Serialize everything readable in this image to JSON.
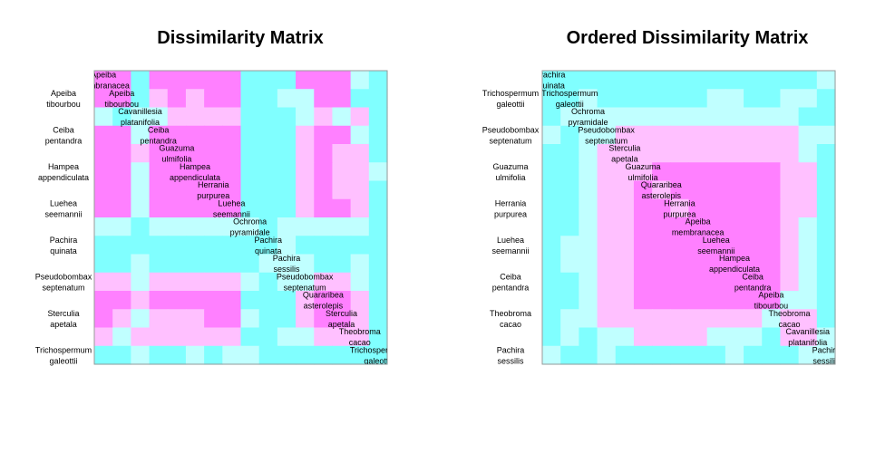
{
  "palette": {
    "cyan": "#80FFFF",
    "light_cyan": "#C0FFFF",
    "light_pink": "#FFC0FF",
    "magenta": "#FF80FF",
    "border": "#999999"
  },
  "chart_data": [
    {
      "type": "heatmap",
      "title": "Dissimilarity Matrix",
      "levels": [
        "cyan",
        "light_cyan",
        "light_pink",
        "magenta"
      ],
      "labels": [
        "Apeiba membranacea",
        "Apeiba tibourbou",
        "Cavanillesia platanifolia",
        "Ceiba pentandra",
        "Guazuma ulmifolia",
        "Hampea appendiculata",
        "Herrania purpurea",
        "Luehea seemannii",
        "Ochroma pyramidale",
        "Pachira quinata",
        "Pachira sessilis",
        "Pseudobombax septenatum",
        "Quararibea asterolepis",
        "Sterculia apetala",
        "Theobroma cacao",
        "Trichospermum galeottii"
      ],
      "diag_labels": [
        [
          "Apeiba",
          "membranacea"
        ],
        [
          "Apeiba",
          "tibourbou"
        ],
        [
          "Cavanillesia",
          "platanifolia"
        ],
        [
          "Ceiba",
          "pentandra"
        ],
        [
          "Guazuma",
          "ulmifolia"
        ],
        [
          "Hampea",
          "appendiculata"
        ],
        [
          "Herrania",
          "purpurea"
        ],
        [
          "Luehea",
          "seemannii"
        ],
        [
          "Ochroma",
          "pyramidale"
        ],
        [
          "Pachira",
          "quinata"
        ],
        [
          "Pachira",
          "sessilis"
        ],
        [
          "Pseudobombax",
          "septenatum"
        ],
        [
          "Quararibea",
          "asterolepis"
        ],
        [
          "Sterculia",
          "apetala"
        ],
        [
          "Theobroma",
          "cacao"
        ],
        [
          "Trichospermum",
          "galeottii"
        ]
      ],
      "row_labels": [
        [
          "Apeiba",
          "tibourbou"
        ],
        [
          "Ceiba",
          "pentandra"
        ],
        [
          "Hampea",
          "appendiculata"
        ],
        [
          "Luehea",
          "seemannii"
        ],
        [
          "Pachira",
          "quinata"
        ],
        [
          "Pseudobombax",
          "septenatum"
        ],
        [
          "Sterculia",
          "apetala"
        ],
        [
          "Trichospermum",
          "galeottii"
        ]
      ],
      "matrix": [
        [
          3,
          3,
          0,
          3,
          3,
          3,
          3,
          3,
          0,
          0,
          0,
          3,
          3,
          3,
          1,
          0
        ],
        [
          3,
          3,
          0,
          2,
          3,
          2,
          3,
          3,
          0,
          0,
          1,
          1,
          3,
          3,
          0,
          0
        ],
        [
          1,
          0,
          1,
          1,
          2,
          2,
          2,
          2,
          0,
          0,
          0,
          1,
          2,
          1,
          2,
          0
        ],
        [
          3,
          3,
          1,
          3,
          3,
          3,
          3,
          3,
          0,
          0,
          0,
          2,
          3,
          3,
          1,
          0
        ],
        [
          3,
          3,
          2,
          3,
          3,
          3,
          3,
          3,
          0,
          0,
          0,
          2,
          3,
          2,
          2,
          0
        ],
        [
          3,
          3,
          1,
          3,
          3,
          3,
          3,
          3,
          0,
          0,
          0,
          2,
          3,
          2,
          2,
          1
        ],
        [
          3,
          3,
          1,
          3,
          3,
          3,
          3,
          3,
          0,
          0,
          0,
          2,
          3,
          2,
          2,
          0
        ],
        [
          3,
          3,
          1,
          3,
          3,
          3,
          3,
          3,
          0,
          0,
          0,
          2,
          3,
          3,
          2,
          0
        ],
        [
          1,
          1,
          0,
          1,
          1,
          1,
          1,
          1,
          1,
          0,
          1,
          1,
          1,
          1,
          1,
          0
        ],
        [
          0,
          0,
          0,
          0,
          0,
          0,
          0,
          0,
          0,
          0,
          1,
          0,
          0,
          0,
          0,
          0
        ],
        [
          0,
          0,
          1,
          0,
          0,
          0,
          0,
          0,
          0,
          1,
          1,
          1,
          0,
          0,
          1,
          0
        ],
        [
          2,
          2,
          1,
          2,
          2,
          2,
          2,
          2,
          1,
          0,
          1,
          1,
          2,
          2,
          1,
          0
        ],
        [
          3,
          3,
          2,
          3,
          3,
          3,
          3,
          3,
          0,
          0,
          0,
          2,
          3,
          3,
          2,
          0
        ],
        [
          3,
          2,
          1,
          2,
          2,
          2,
          3,
          3,
          1,
          0,
          0,
          2,
          3,
          3,
          2,
          0
        ],
        [
          2,
          1,
          2,
          2,
          2,
          2,
          2,
          2,
          0,
          0,
          1,
          1,
          2,
          2,
          2,
          0
        ],
        [
          0,
          0,
          1,
          0,
          0,
          1,
          0,
          1,
          1,
          0,
          0,
          0,
          0,
          0,
          0,
          0
        ]
      ]
    },
    {
      "type": "heatmap",
      "title": "Ordered Dissimilarity Matrix",
      "levels": [
        "cyan",
        "light_cyan",
        "light_pink",
        "magenta"
      ],
      "labels": [
        "Pachira quinata",
        "Trichospermum galeottii",
        "Ochroma pyramidale",
        "Pseudobombax septenatum",
        "Sterculia apetala",
        "Guazuma ulmifolia",
        "Quararibea asterolepis",
        "Herrania purpurea",
        "Apeiba membranacea",
        "Luehea seemannii",
        "Hampea appendiculata",
        "Ceiba pentandra",
        "Apeiba tibourbou",
        "Theobroma cacao",
        "Cavanillesia platanifolia",
        "Pachira sessilis"
      ],
      "diag_labels": [
        [
          "Pachira",
          "quinata"
        ],
        [
          "Trichospermum",
          "galeottii"
        ],
        [
          "Ochroma",
          "pyramidale"
        ],
        [
          "Pseudobombax",
          "septenatum"
        ],
        [
          "Sterculia",
          "apetala"
        ],
        [
          "Guazuma",
          "ulmifolia"
        ],
        [
          "Quararibea",
          "asterolepis"
        ],
        [
          "Herrania",
          "purpurea"
        ],
        [
          "Apeiba",
          "membranacea"
        ],
        [
          "Luehea",
          "seemannii"
        ],
        [
          "Hampea",
          "appendiculata"
        ],
        [
          "Ceiba",
          "pentandra"
        ],
        [
          "Apeiba",
          "tibourbou"
        ],
        [
          "Theobroma",
          "cacao"
        ],
        [
          "Cavanillesia",
          "platanifolia"
        ],
        [
          "Pachira",
          "sessilis"
        ]
      ],
      "row_labels": [
        [
          "Trichospermum",
          "galeottii"
        ],
        [
          "Pseudobombax",
          "septenatum"
        ],
        [
          "Guazuma",
          "ulmifolia"
        ],
        [
          "Herrania",
          "purpurea"
        ],
        [
          "Luehea",
          "seemannii"
        ],
        [
          "Ceiba",
          "pentandra"
        ],
        [
          "Theobroma",
          "cacao"
        ],
        [
          "Pachira",
          "sessilis"
        ]
      ],
      "matrix": [
        [
          0,
          0,
          0,
          0,
          0,
          0,
          0,
          0,
          0,
          0,
          0,
          0,
          0,
          0,
          0,
          1
        ],
        [
          0,
          0,
          1,
          0,
          0,
          0,
          0,
          0,
          0,
          1,
          1,
          0,
          0,
          1,
          1,
          0
        ],
        [
          0,
          1,
          1,
          1,
          1,
          1,
          1,
          1,
          1,
          1,
          1,
          1,
          1,
          1,
          0,
          0
        ],
        [
          1,
          0,
          1,
          1,
          2,
          2,
          2,
          2,
          2,
          2,
          2,
          2,
          2,
          2,
          1,
          1
        ],
        [
          0,
          0,
          1,
          2,
          2,
          2,
          2,
          2,
          2,
          2,
          2,
          2,
          2,
          2,
          1,
          0
        ],
        [
          0,
          0,
          1,
          2,
          2,
          2,
          3,
          3,
          3,
          3,
          3,
          3,
          3,
          2,
          2,
          0
        ],
        [
          0,
          0,
          1,
          2,
          2,
          3,
          2,
          3,
          3,
          3,
          3,
          3,
          3,
          2,
          2,
          0
        ],
        [
          0,
          0,
          1,
          2,
          2,
          3,
          3,
          2,
          3,
          3,
          3,
          3,
          3,
          2,
          2,
          0
        ],
        [
          0,
          0,
          1,
          2,
          2,
          3,
          3,
          3,
          3,
          3,
          3,
          3,
          3,
          2,
          1,
          0
        ],
        [
          0,
          1,
          1,
          2,
          2,
          3,
          3,
          3,
          3,
          3,
          3,
          3,
          3,
          2,
          1,
          0
        ],
        [
          0,
          1,
          1,
          2,
          2,
          3,
          3,
          3,
          3,
          3,
          3,
          3,
          3,
          2,
          1,
          0
        ],
        [
          0,
          0,
          1,
          2,
          2,
          3,
          3,
          3,
          3,
          3,
          3,
          3,
          3,
          2,
          1,
          0
        ],
        [
          0,
          0,
          1,
          2,
          2,
          3,
          3,
          3,
          3,
          3,
          3,
          3,
          3,
          1,
          1,
          0
        ],
        [
          0,
          1,
          1,
          2,
          2,
          2,
          2,
          2,
          2,
          2,
          2,
          2,
          1,
          2,
          2,
          0
        ],
        [
          0,
          1,
          0,
          1,
          1,
          2,
          2,
          2,
          2,
          1,
          1,
          1,
          0,
          2,
          2,
          1
        ],
        [
          1,
          0,
          0,
          1,
          0,
          0,
          0,
          0,
          0,
          0,
          1,
          0,
          0,
          0,
          1,
          1
        ]
      ]
    }
  ]
}
